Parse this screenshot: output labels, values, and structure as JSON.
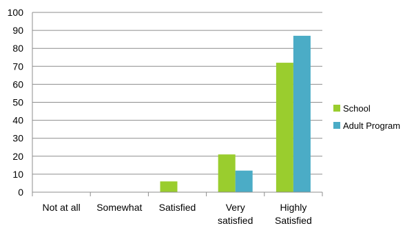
{
  "chart_data": {
    "type": "bar",
    "categories": [
      [
        "Not at all"
      ],
      [
        "Somewhat"
      ],
      [
        "Satisfied"
      ],
      [
        "Very",
        "satisfied"
      ],
      [
        "Highly",
        "Satisfied"
      ]
    ],
    "series": [
      {
        "name": "School",
        "color": "#9acd2e",
        "values": [
          0,
          0,
          6,
          21,
          72
        ]
      },
      {
        "name": "Adult Program",
        "color": "#4bacc6",
        "values": [
          0,
          0,
          0,
          12,
          87
        ]
      }
    ],
    "ylim": [
      0,
      100
    ],
    "yticks": [
      0,
      10,
      20,
      30,
      40,
      50,
      60,
      70,
      80,
      90,
      100
    ],
    "grid": true,
    "legend_position": "right",
    "title": "",
    "xlabel": "",
    "ylabel": ""
  }
}
